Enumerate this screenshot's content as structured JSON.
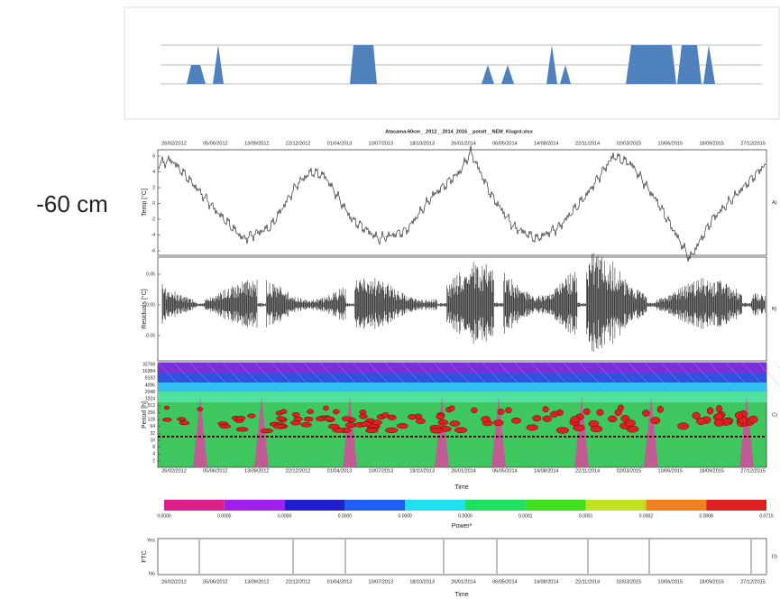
{
  "side_label": "-60 cm",
  "figure": {
    "title": "Atacama-60cm__2012__2014_2016__potolt__NEM_Kiugrd.xlsx",
    "dates": [
      "26/02/2012",
      "05/06/2012",
      "13/09/2012",
      "22/12/2012",
      "01/04/2013",
      "10/07/2013",
      "18/10/2013",
      "26/01/2014",
      "06/05/2014",
      "14/08/2014",
      "22/11/2014",
      "02/03/2015",
      "10/06/2015",
      "18/09/2015",
      "27/12/2015"
    ],
    "panels": [
      {
        "label": "A)",
        "y_axis": "Temp [°C]",
        "ticks": [
          "6",
          "4",
          "2",
          "0",
          "-2",
          "-4",
          "-6"
        ]
      },
      {
        "label": "B)",
        "y_axis": "Residuals [°C]",
        "ticks": [
          "0.05",
          "0.00",
          "-0.05"
        ]
      },
      {
        "label": "C)",
        "y_axis": "Period [h]",
        "ticks": [
          "32768",
          "16384",
          "8192",
          "4096",
          "2048",
          "1024",
          "512",
          "256",
          "128",
          "64",
          "32",
          "16",
          "8",
          "4",
          "2"
        ]
      }
    ],
    "x_axis": "Time",
    "colorbar": {
      "title": "Power²",
      "labels": [
        "0.0000",
        "0.0000",
        "0.0000",
        "0.0000",
        "0.0000",
        "0.0000",
        "0.0001",
        "0.0001",
        "0.0002",
        "0.0008",
        "0.0715"
      ]
    },
    "ftc": {
      "label": "D)",
      "y_axis": "FTC",
      "ticks": [
        "Yes",
        "No"
      ]
    }
  }
}
